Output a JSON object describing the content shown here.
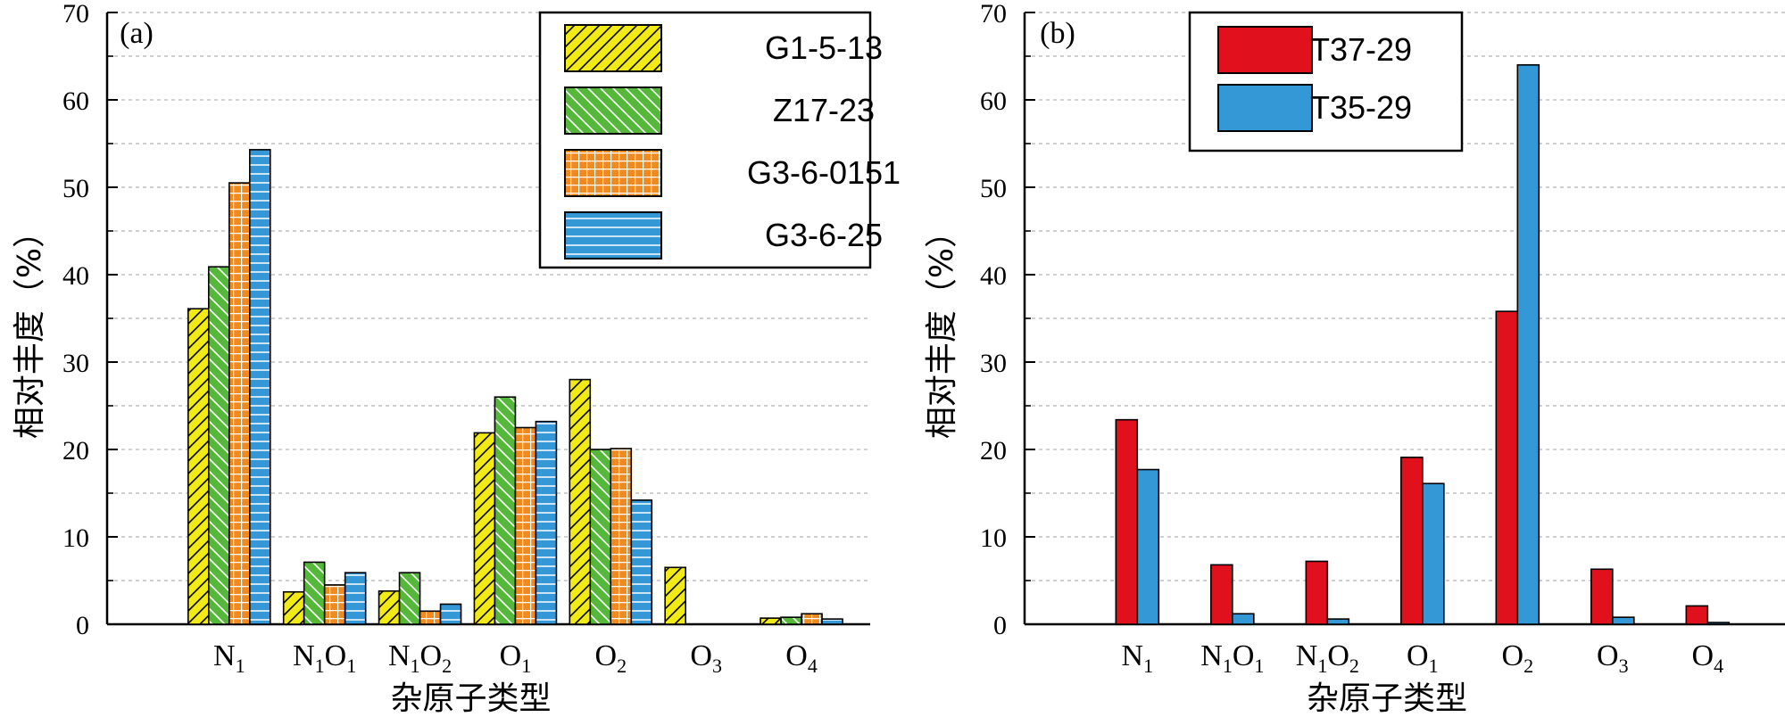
{
  "colors": {
    "yellow": "#f2ea14",
    "green": "#55b83a",
    "orange": "#f08a1e",
    "blue": "#3497d6",
    "red": "#e0101c",
    "grid": "#b3b3b3"
  },
  "chart_data": [
    {
      "type": "bar",
      "panel_label": "(a)",
      "xlabel": "杂原子类型",
      "ylabel": "相对丰度（%）",
      "ylim": [
        0,
        70
      ],
      "yticks": [
        "0",
        "10",
        "20",
        "30",
        "40",
        "50",
        "60",
        "70"
      ],
      "grid": true,
      "legend_position": "top-right",
      "categories": [
        {
          "base": "N",
          "sub": "1",
          "base2": "",
          "sub2": ""
        },
        {
          "base": "N",
          "sub": "1",
          "base2": "O",
          "sub2": "1"
        },
        {
          "base": "N",
          "sub": "1",
          "base2": "O",
          "sub2": "2"
        },
        {
          "base": "O",
          "sub": "1",
          "base2": "",
          "sub2": ""
        },
        {
          "base": "O",
          "sub": "2",
          "base2": "",
          "sub2": ""
        },
        {
          "base": "O",
          "sub": "3",
          "base2": "",
          "sub2": ""
        },
        {
          "base": "O",
          "sub": "4",
          "base2": "",
          "sub2": ""
        }
      ],
      "series": [
        {
          "name": "G1-5-13",
          "color": "#f2ea14",
          "pattern": "hatch-forward",
          "values": [
            36.1,
            3.7,
            3.8,
            21.9,
            28.0,
            6.5,
            0.7
          ]
        },
        {
          "name": "Z17-23",
          "color": "#55b83a",
          "pattern": "hatch-back",
          "values": [
            40.9,
            7.1,
            5.9,
            26.0,
            20.0,
            0,
            0.8
          ]
        },
        {
          "name": "G3-6-0151",
          "color": "#f08a1e",
          "pattern": "grid",
          "values": [
            50.5,
            4.5,
            1.5,
            22.5,
            20.1,
            0,
            1.2
          ]
        },
        {
          "name": "G3-6-25",
          "color": "#3497d6",
          "pattern": "horizontal-lines",
          "values": [
            54.3,
            5.9,
            2.3,
            23.2,
            14.2,
            0,
            0.6
          ]
        }
      ]
    },
    {
      "type": "bar",
      "panel_label": "(b)",
      "xlabel": "杂原子类型",
      "ylabel": "相对丰度（%）",
      "ylim": [
        0,
        70
      ],
      "yticks": [
        "0",
        "10",
        "20",
        "30",
        "40",
        "50",
        "60",
        "70"
      ],
      "grid": true,
      "legend_position": "top-left",
      "categories": [
        {
          "base": "N",
          "sub": "1",
          "base2": "",
          "sub2": ""
        },
        {
          "base": "N",
          "sub": "1",
          "base2": "O",
          "sub2": "1"
        },
        {
          "base": "N",
          "sub": "1",
          "base2": "O",
          "sub2": "2"
        },
        {
          "base": "O",
          "sub": "1",
          "base2": "",
          "sub2": ""
        },
        {
          "base": "O",
          "sub": "2",
          "base2": "",
          "sub2": ""
        },
        {
          "base": "O",
          "sub": "3",
          "base2": "",
          "sub2": ""
        },
        {
          "base": "O",
          "sub": "4",
          "base2": "",
          "sub2": ""
        }
      ],
      "series": [
        {
          "name": "T37-29",
          "color": "#e0101c",
          "pattern": "solid",
          "values": [
            23.4,
            6.8,
            7.2,
            19.1,
            35.8,
            6.3,
            2.1
          ]
        },
        {
          "name": "T35-29",
          "color": "#3497d6",
          "pattern": "solid",
          "values": [
            17.7,
            1.2,
            0.6,
            16.1,
            64.0,
            0.8,
            0.2
          ]
        }
      ]
    }
  ]
}
